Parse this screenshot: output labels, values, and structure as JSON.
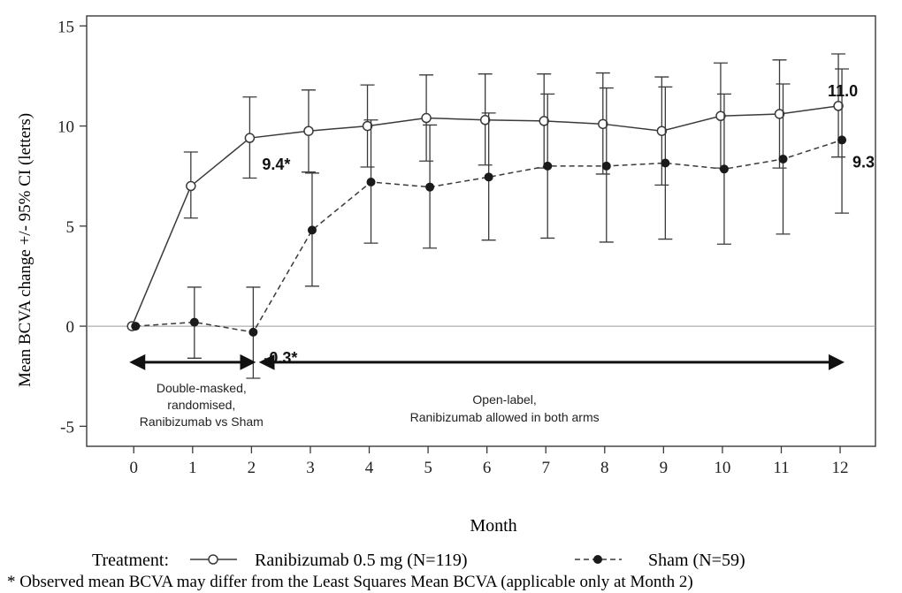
{
  "chart_data": {
    "type": "line",
    "xlabel": "Month",
    "ylabel": "Mean BCVA change +/- 95% CI (letters)",
    "xlim": [
      -0.8,
      12.6
    ],
    "ylim": [
      -6,
      15.5
    ],
    "x_ticks": [
      "0",
      "1",
      "2",
      "3",
      "4",
      "5",
      "6",
      "7",
      "8",
      "9",
      "10",
      "11",
      "12"
    ],
    "y_ticks": [
      "15",
      "10",
      "5",
      "0",
      "-5"
    ],
    "grid": false,
    "reference_line_y": 0,
    "series": [
      {
        "name": "Ranibizumab 0.5 mg (N=119)",
        "marker": "open-circle",
        "line_style": "solid",
        "x": [
          0,
          1,
          2,
          3,
          4,
          5,
          6,
          7,
          8,
          9,
          10,
          11,
          12
        ],
        "y": [
          0,
          7.0,
          9.4,
          9.75,
          10.0,
          10.4,
          10.3,
          10.25,
          10.1,
          9.75,
          10.5,
          10.6,
          11.0
        ],
        "ci_low": [
          0,
          5.4,
          7.4,
          7.7,
          7.95,
          8.25,
          8.05,
          7.9,
          7.6,
          7.05,
          7.9,
          7.9,
          8.45
        ],
        "ci_high": [
          0,
          8.7,
          11.45,
          11.8,
          12.05,
          12.55,
          12.6,
          12.6,
          12.65,
          12.45,
          13.15,
          13.3,
          13.6
        ]
      },
      {
        "name": "Sham (N=59)",
        "marker": "filled-circle",
        "line_style": "dashed",
        "x": [
          0,
          1,
          2,
          3,
          4,
          5,
          6,
          7,
          8,
          9,
          10,
          11,
          12
        ],
        "y": [
          0,
          0.2,
          -0.3,
          4.8,
          7.2,
          6.95,
          7.45,
          8.0,
          8.0,
          8.15,
          7.85,
          8.35,
          9.3
        ],
        "ci_low": [
          0,
          -1.6,
          -2.6,
          2.0,
          4.15,
          3.9,
          4.3,
          4.4,
          4.2,
          4.35,
          4.1,
          4.6,
          5.65
        ],
        "ci_high": [
          0,
          1.95,
          1.95,
          7.65,
          10.3,
          10.05,
          10.65,
          11.6,
          11.9,
          11.95,
          11.6,
          12.1,
          12.85
        ]
      }
    ],
    "annotations": [
      {
        "text": "9.4*",
        "x": 2,
        "y": 9.4
      },
      {
        "text": "-0.3*",
        "x": 2,
        "y": -0.3
      },
      {
        "text": "11.0",
        "x": 12,
        "y": 11.0
      },
      {
        "text": "9.3",
        "x": 12,
        "y": 9.3
      }
    ],
    "periods": [
      {
        "lines": [
          "Double-masked,",
          "randomised,",
          "Ranibizumab vs Sham"
        ],
        "x_start": 0,
        "x_end": 2,
        "y": -1.8
      },
      {
        "lines": [
          "Open-label,",
          "Ranibizumab allowed in both arms"
        ],
        "x_start": 2.2,
        "x_end": 12,
        "y": -1.8
      }
    ],
    "legend": {
      "position": "bottom",
      "prefix": "Treatment:"
    },
    "footnote": "* Observed mean BCVA may differ from the Least Squares Mean BCVA (applicable only at Month 2)"
  }
}
